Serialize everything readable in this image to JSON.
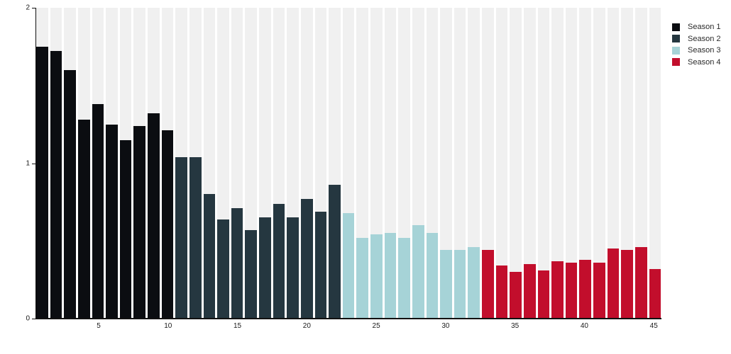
{
  "chart_data": {
    "type": "bar",
    "title": "",
    "xlabel": "",
    "ylabel": "",
    "ylim": [
      0,
      2
    ],
    "yticks": [
      0,
      1,
      2
    ],
    "xticks": [
      5,
      10,
      15,
      20,
      25,
      30,
      35,
      40,
      45
    ],
    "x_range": [
      1,
      45
    ],
    "grid": false,
    "background_column_color": "#f0f0f0",
    "axis_color": "#111111",
    "categories_note": "x = episode number 1..45, bars colored by season",
    "series": [
      {
        "name": "Season 1",
        "color": "#0b0d11",
        "start_x": 1,
        "values": [
          1.75,
          1.72,
          1.6,
          1.28,
          1.38,
          1.25,
          1.15,
          1.24,
          1.32,
          1.21
        ]
      },
      {
        "name": "Season 2",
        "color": "#253740",
        "start_x": 11,
        "values": [
          1.04,
          1.04,
          0.8,
          0.64,
          0.71,
          0.57,
          0.65,
          0.74,
          0.65,
          0.77,
          0.69,
          0.86
        ]
      },
      {
        "name": "Season 3",
        "color": "#a6d3d7",
        "start_x": 23,
        "values": [
          0.68,
          0.52,
          0.54,
          0.55,
          0.52,
          0.6,
          0.55,
          0.44,
          0.44,
          0.46
        ]
      },
      {
        "name": "Season 4",
        "color": "#c20e2c",
        "start_x": 33,
        "values": [
          0.44,
          0.34,
          0.3,
          0.35,
          0.31,
          0.37,
          0.36,
          0.38,
          0.36,
          0.45,
          0.44,
          0.46,
          0.32
        ]
      }
    ],
    "legend": {
      "position": "top-right",
      "entries": [
        {
          "label": "Season 1",
          "color": "#0b0d11"
        },
        {
          "label": "Season 2",
          "color": "#253740"
        },
        {
          "label": "Season 3",
          "color": "#a6d3d7"
        },
        {
          "label": "Season 4",
          "color": "#c20e2c"
        }
      ]
    }
  }
}
